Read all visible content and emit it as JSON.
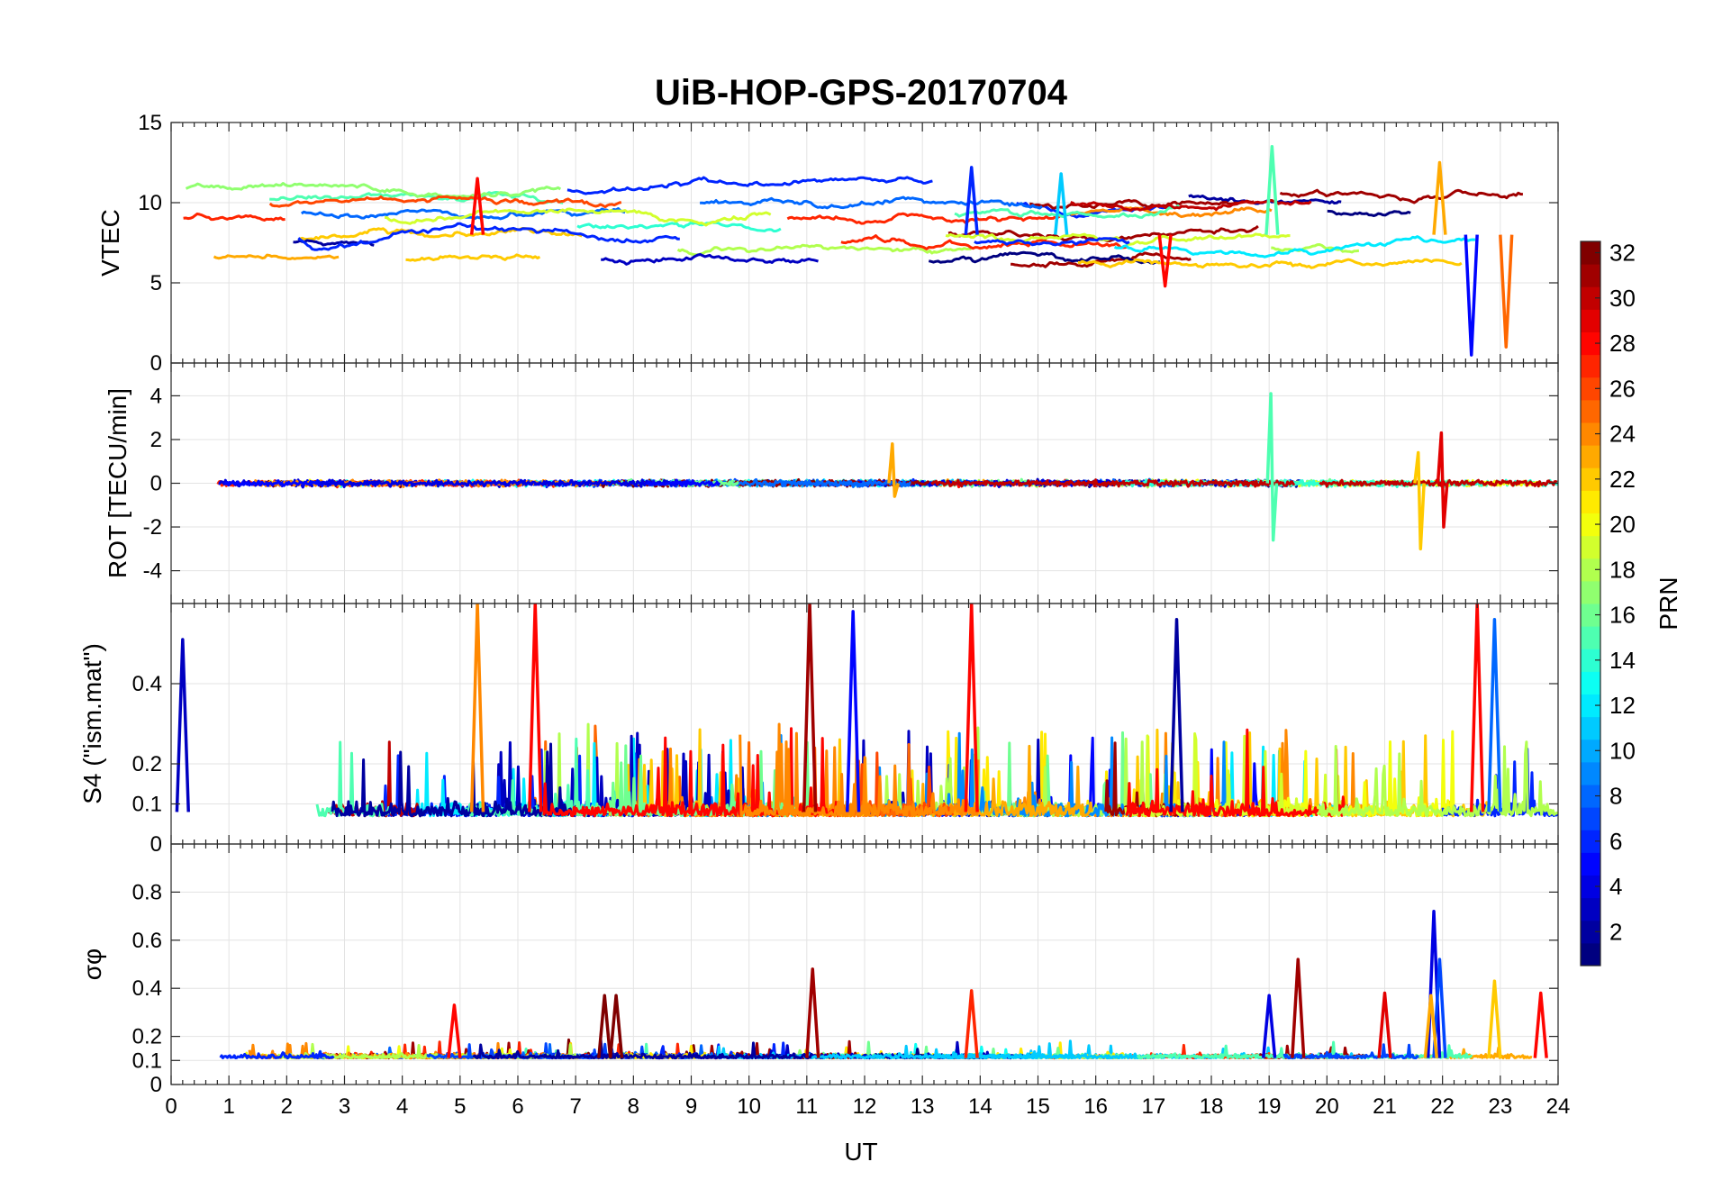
{
  "chart_data": {
    "type": "line",
    "title": "UiB-HOP-GPS-20170704",
    "xlabel": "UT",
    "xlim": [
      0,
      24
    ],
    "xticks": [
      "0",
      "1",
      "2",
      "3",
      "4",
      "5",
      "6",
      "7",
      "8",
      "9",
      "10",
      "11",
      "12",
      "13",
      "14",
      "15",
      "16",
      "17",
      "18",
      "19",
      "20",
      "21",
      "22",
      "23",
      "24"
    ],
    "grid": true,
    "colormap": "jet",
    "colorbar": {
      "label": "PRN",
      "range": [
        1,
        32
      ],
      "ticks": [
        "2",
        "4",
        "6",
        "8",
        "10",
        "12",
        "14",
        "16",
        "18",
        "20",
        "22",
        "24",
        "26",
        "28",
        "30",
        "32"
      ],
      "placement": "right"
    },
    "panels": [
      {
        "name": "vtec",
        "ylabel": "VTEC",
        "ylim": [
          0,
          15
        ],
        "yticks": [
          "0",
          "5",
          "10",
          "15"
        ],
        "series_desc": "per-satellite VTEC arcs, typically 6-11 TECU",
        "peaks": [
          {
            "x": 5.3,
            "y": 11.5,
            "prn": 28
          },
          {
            "x": 13.85,
            "y": 12.2,
            "prn": 6
          },
          {
            "x": 19.05,
            "y": 13.5,
            "prn": 15
          },
          {
            "x": 21.95,
            "y": 12.5,
            "prn": 23
          },
          {
            "x": 15.4,
            "y": 11.8,
            "prn": 11
          }
        ],
        "dips": [
          {
            "x": 22.5,
            "y": 0.5,
            "prn": 5
          },
          {
            "x": 23.1,
            "y": 1.0,
            "prn": 25
          },
          {
            "x": 17.2,
            "y": 4.8,
            "prn": 28
          }
        ]
      },
      {
        "name": "rot",
        "ylabel": "ROT [TECU/min]",
        "ylim": [
          -5.5,
          5.5
        ],
        "yticks": [
          "-4",
          "-2",
          "0",
          "2",
          "4"
        ],
        "spikes": [
          {
            "x": 19.05,
            "max": 4.1,
            "min": -2.6,
            "prn": 15
          },
          {
            "x": 21.6,
            "max": 1.4,
            "min": -3.0,
            "prn": 22
          },
          {
            "x": 22.0,
            "max": 2.3,
            "min": -2.0,
            "prn": 29
          },
          {
            "x": 12.5,
            "max": 1.8,
            "min": -0.6,
            "prn": 23
          }
        ]
      },
      {
        "name": "s4",
        "ylabel": "S4 (\"ism.mat\")",
        "ylim": [
          0,
          0.6
        ],
        "yticks": [
          "0",
          "0.1",
          "0.2",
          "0.4"
        ],
        "spikes": [
          {
            "x": 5.3,
            "y": 0.6,
            "prn": 24
          },
          {
            "x": 6.3,
            "y": 0.6,
            "prn": 28
          },
          {
            "x": 11.05,
            "y": 0.6,
            "prn": 31
          },
          {
            "x": 11.8,
            "y": 0.58,
            "prn": 5
          },
          {
            "x": 13.85,
            "y": 0.6,
            "prn": 28
          },
          {
            "x": 22.6,
            "y": 0.6,
            "prn": 28
          },
          {
            "x": 22.9,
            "y": 0.56,
            "prn": 8
          },
          {
            "x": 0.2,
            "y": 0.51,
            "prn": 3
          },
          {
            "x": 17.4,
            "y": 0.56,
            "prn": 2
          }
        ]
      },
      {
        "name": "sigma_phi",
        "ylabel": "σφ",
        "ylim": [
          0,
          1
        ],
        "yticks": [
          "0",
          "0.1",
          "0.2",
          "0.4",
          "0.6",
          "0.8"
        ],
        "spikes": [
          {
            "x": 21.85,
            "y": 0.72,
            "prn": 4
          },
          {
            "x": 21.95,
            "y": 0.52,
            "prn": 7
          },
          {
            "x": 19.5,
            "y": 0.52,
            "prn": 31
          },
          {
            "x": 11.1,
            "y": 0.48,
            "prn": 31
          },
          {
            "x": 13.85,
            "y": 0.39,
            "prn": 27
          },
          {
            "x": 7.5,
            "y": 0.37,
            "prn": 32
          },
          {
            "x": 7.7,
            "y": 0.37,
            "prn": 32
          },
          {
            "x": 19.0,
            "y": 0.37,
            "prn": 4
          },
          {
            "x": 21.8,
            "y": 0.37,
            "prn": 23
          },
          {
            "x": 22.9,
            "y": 0.43,
            "prn": 22
          },
          {
            "x": 23.7,
            "y": 0.38,
            "prn": 28
          },
          {
            "x": 21.0,
            "y": 0.38,
            "prn": 29
          },
          {
            "x": 4.9,
            "y": 0.33,
            "prn": 28
          }
        ]
      }
    ]
  }
}
